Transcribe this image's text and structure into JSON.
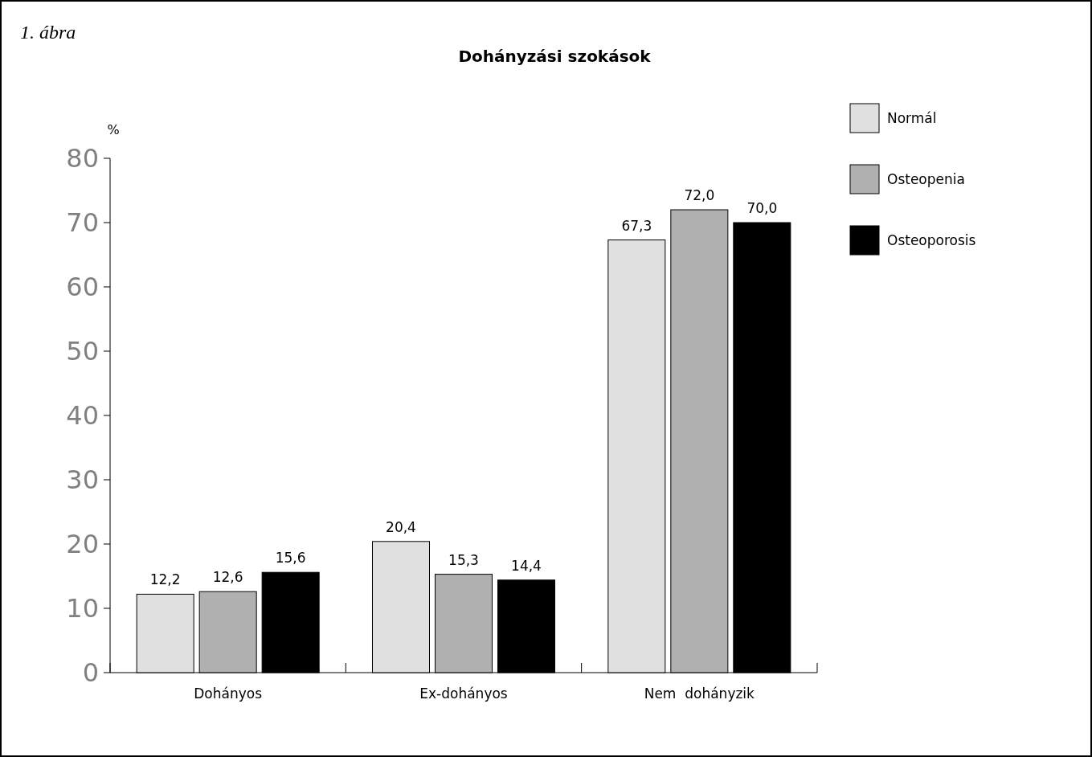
{
  "chart_data": {
    "type": "bar",
    "title": "Dohányzási szokások",
    "ylabel": "%",
    "annotations": [
      "1. ábra"
    ],
    "categories": [
      "Dohányos",
      "Ex-dohányos",
      "Nem  dohányzik"
    ],
    "series": [
      {
        "name": "Normál",
        "color": "#e0e0e0",
        "values": [
          12.2,
          20.4,
          67.3
        ]
      },
      {
        "name": "Osteopenia",
        "color": "#b0b0b0",
        "values": [
          12.6,
          15.3,
          72.0
        ]
      },
      {
        "name": "Osteoporosis",
        "color": "#000000",
        "values": [
          15.6,
          14.4,
          70.0
        ]
      }
    ],
    "value_labels": [
      [
        "12,2",
        "20,4",
        "67,3"
      ],
      [
        "12,6",
        "15,3",
        "72,0"
      ],
      [
        "15,6",
        "14,4",
        "70,0"
      ]
    ],
    "ylim": [
      0,
      80
    ],
    "yticks": [
      0,
      10,
      20,
      30,
      40,
      50,
      60,
      70,
      80
    ],
    "grid": false,
    "legend": "top right"
  }
}
